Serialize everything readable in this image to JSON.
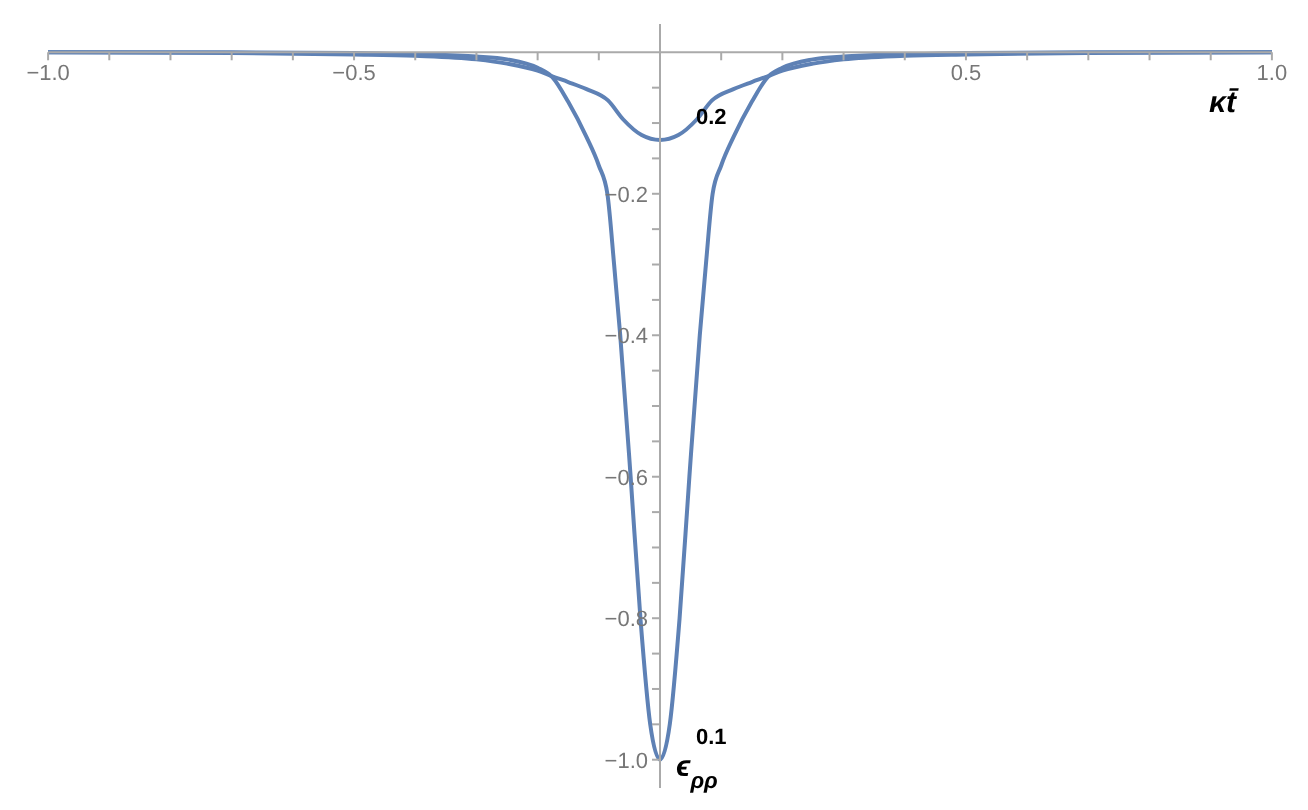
{
  "chart_data": {
    "type": "line",
    "xlabel": "κt̄",
    "ylabel": "ϵ$_{ρρ}$",
    "xlim": [
      -1,
      1
    ],
    "ylim": [
      -1.04,
      0.04
    ],
    "xticks": [
      {
        "value": -1,
        "label": "−1.0"
      },
      {
        "value": -0.9,
        "label": null
      },
      {
        "value": -0.8,
        "label": null
      },
      {
        "value": -0.7,
        "label": null
      },
      {
        "value": -0.6,
        "label": null
      },
      {
        "value": -0.5,
        "label": "−0.5"
      },
      {
        "value": -0.4,
        "label": null
      },
      {
        "value": -0.3,
        "label": null
      },
      {
        "value": -0.2,
        "label": null
      },
      {
        "value": -0.1,
        "label": null
      },
      {
        "value": 0.1,
        "label": null
      },
      {
        "value": 0.2,
        "label": null
      },
      {
        "value": 0.3,
        "label": null
      },
      {
        "value": 0.4,
        "label": null
      },
      {
        "value": 0.5,
        "label": "0.5"
      },
      {
        "value": 0.6,
        "label": null
      },
      {
        "value": 0.7,
        "label": null
      },
      {
        "value": 0.8,
        "label": null
      },
      {
        "value": 0.9,
        "label": null
      },
      {
        "value": 1,
        "label": "1.0"
      }
    ],
    "yticks": [
      {
        "value": -1,
        "label": "−1.0"
      },
      {
        "value": -0.95,
        "label": null
      },
      {
        "value": -0.9,
        "label": null
      },
      {
        "value": -0.85,
        "label": null
      },
      {
        "value": -0.8,
        "label": "−0.8"
      },
      {
        "value": -0.75,
        "label": null
      },
      {
        "value": -0.7,
        "label": null
      },
      {
        "value": -0.65,
        "label": null
      },
      {
        "value": -0.6,
        "label": "−0.6"
      },
      {
        "value": -0.55,
        "label": null
      },
      {
        "value": -0.5,
        "label": null
      },
      {
        "value": -0.45,
        "label": null
      },
      {
        "value": -0.4,
        "label": "−0.4"
      },
      {
        "value": -0.35,
        "label": null
      },
      {
        "value": -0.3,
        "label": null
      },
      {
        "value": -0.25,
        "label": null
      },
      {
        "value": -0.2,
        "label": "−0.2"
      },
      {
        "value": -0.15,
        "label": null
      },
      {
        "value": -0.1,
        "label": null
      },
      {
        "value": -0.05,
        "label": null
      }
    ],
    "grid": false,
    "legend": false,
    "marker": "none",
    "line_style": "solid",
    "series": [
      {
        "name": "0.1",
        "color": "#5e81b5",
        "x": [
          -1,
          -0.7,
          -0.5,
          -0.4,
          -0.3,
          -0.25,
          -0.2,
          -0.176,
          -0.15,
          -0.12,
          -0.1,
          -0.086,
          -0.075,
          -0.065,
          -0.048,
          -0.032,
          -0.016,
          0,
          0.016,
          0.032,
          0.048,
          0.065,
          0.075,
          0.086,
          0.1,
          0.12,
          0.15,
          0.176,
          0.2,
          0.25,
          0.3,
          0.4,
          0.5,
          0.7,
          1
        ],
        "values": [
          0,
          0,
          -0.001,
          -0.003,
          -0.006,
          -0.01,
          -0.022,
          -0.035,
          -0.07,
          -0.12,
          -0.16,
          -0.2,
          -0.3,
          -0.4,
          -0.6,
          -0.8,
          -0.95,
          -1,
          -0.95,
          -0.8,
          -0.6,
          -0.4,
          -0.3,
          -0.2,
          -0.16,
          -0.12,
          -0.07,
          -0.035,
          -0.022,
          -0.01,
          -0.006,
          -0.003,
          -0.001,
          0,
          0
        ]
      },
      {
        "name": "0.2",
        "color": "#5e81b5",
        "x": [
          -1,
          -0.7,
          -0.5,
          -0.4,
          -0.3,
          -0.25,
          -0.2,
          -0.176,
          -0.15,
          -0.12,
          -0.085,
          -0.06,
          -0.03,
          0,
          0.03,
          0.06,
          0.085,
          0.12,
          0.15,
          0.176,
          0.2,
          0.25,
          0.3,
          0.4,
          0.5,
          0.7,
          1
        ],
        "values": [
          0,
          -0.001,
          -0.003,
          -0.005,
          -0.01,
          -0.016,
          -0.026,
          -0.034,
          -0.042,
          -0.052,
          -0.068,
          -0.095,
          -0.117,
          -0.124,
          -0.117,
          -0.095,
          -0.068,
          -0.052,
          -0.042,
          -0.034,
          -0.026,
          -0.016,
          -0.01,
          -0.005,
          -0.003,
          -0.001,
          0
        ]
      }
    ]
  }
}
